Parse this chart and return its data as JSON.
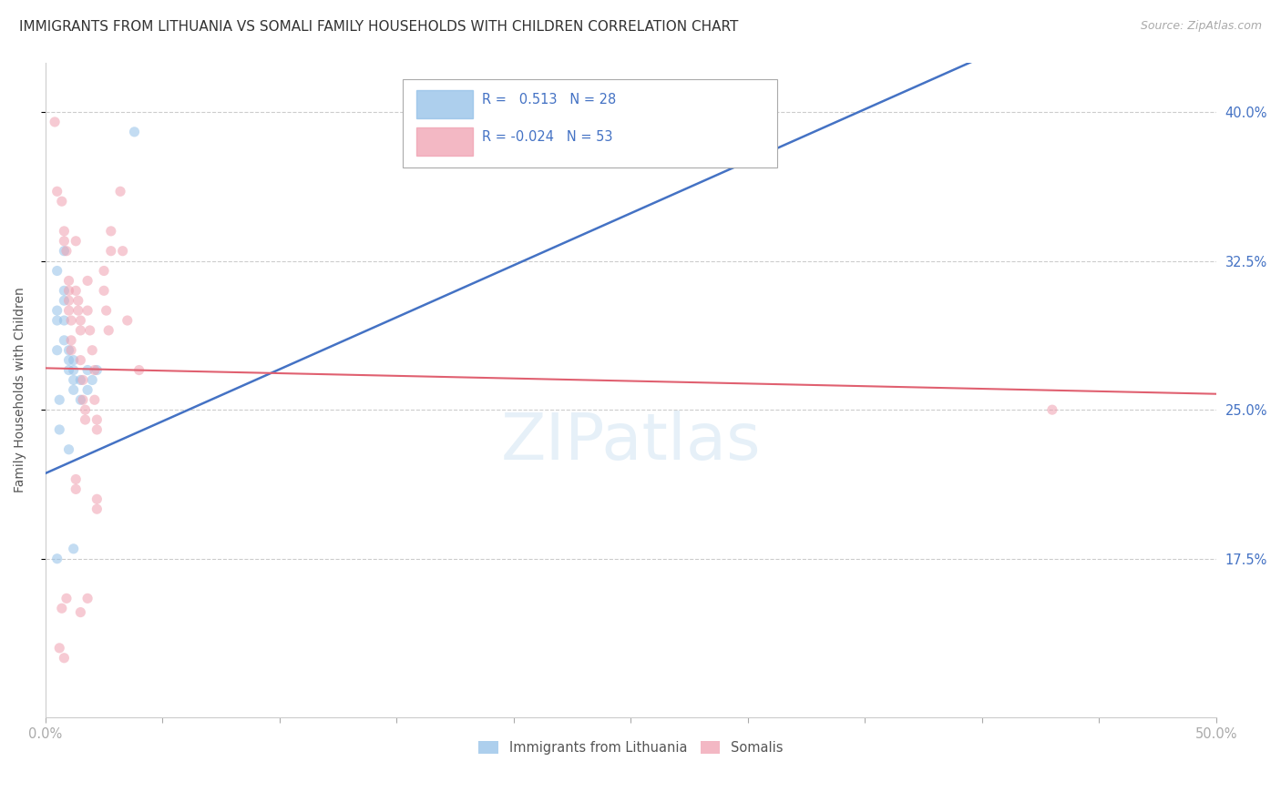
{
  "title": "IMMIGRANTS FROM LITHUANIA VS SOMALI FAMILY HOUSEHOLDS WITH CHILDREN CORRELATION CHART",
  "source": "Source: ZipAtlas.com",
  "ylabel": "Family Households with Children",
  "yticks": [
    "40.0%",
    "32.5%",
    "25.0%",
    "17.5%"
  ],
  "ytick_vals": [
    0.4,
    0.325,
    0.25,
    0.175
  ],
  "xmin": 0.0,
  "xmax": 0.5,
  "ymin": 0.095,
  "ymax": 0.425,
  "legend1_color": "#92c0e8",
  "legend2_color": "#f0a0b0",
  "blue_line_color": "#4472c4",
  "pink_line_color": "#e06070",
  "grid_color": "#cccccc",
  "dot_size": 65,
  "dot_alpha": 0.55,
  "title_fontsize": 11,
  "source_fontsize": 9,
  "axis_label_fontsize": 10,
  "tick_fontsize": 10.5,
  "blue_points": [
    [
      0.005,
      0.32
    ],
    [
      0.005,
      0.3
    ],
    [
      0.005,
      0.295
    ],
    [
      0.005,
      0.28
    ],
    [
      0.008,
      0.33
    ],
    [
      0.008,
      0.31
    ],
    [
      0.008,
      0.305
    ],
    [
      0.008,
      0.295
    ],
    [
      0.008,
      0.285
    ],
    [
      0.01,
      0.28
    ],
    [
      0.01,
      0.275
    ],
    [
      0.01,
      0.27
    ],
    [
      0.012,
      0.275
    ],
    [
      0.012,
      0.27
    ],
    [
      0.012,
      0.265
    ],
    [
      0.012,
      0.26
    ],
    [
      0.015,
      0.265
    ],
    [
      0.015,
      0.255
    ],
    [
      0.018,
      0.27
    ],
    [
      0.018,
      0.26
    ],
    [
      0.02,
      0.265
    ],
    [
      0.022,
      0.27
    ],
    [
      0.006,
      0.24
    ],
    [
      0.01,
      0.23
    ],
    [
      0.005,
      0.175
    ],
    [
      0.012,
      0.18
    ],
    [
      0.038,
      0.39
    ],
    [
      0.006,
      0.255
    ]
  ],
  "pink_points": [
    [
      0.004,
      0.395
    ],
    [
      0.005,
      0.36
    ],
    [
      0.007,
      0.355
    ],
    [
      0.008,
      0.34
    ],
    [
      0.008,
      0.335
    ],
    [
      0.009,
      0.33
    ],
    [
      0.01,
      0.315
    ],
    [
      0.01,
      0.31
    ],
    [
      0.01,
      0.305
    ],
    [
      0.01,
      0.3
    ],
    [
      0.011,
      0.295
    ],
    [
      0.011,
      0.285
    ],
    [
      0.011,
      0.28
    ],
    [
      0.013,
      0.335
    ],
    [
      0.013,
      0.31
    ],
    [
      0.014,
      0.305
    ],
    [
      0.014,
      0.3
    ],
    [
      0.015,
      0.295
    ],
    [
      0.015,
      0.29
    ],
    [
      0.015,
      0.275
    ],
    [
      0.016,
      0.265
    ],
    [
      0.016,
      0.255
    ],
    [
      0.017,
      0.25
    ],
    [
      0.017,
      0.245
    ],
    [
      0.018,
      0.315
    ],
    [
      0.018,
      0.3
    ],
    [
      0.019,
      0.29
    ],
    [
      0.02,
      0.28
    ],
    [
      0.021,
      0.27
    ],
    [
      0.021,
      0.255
    ],
    [
      0.022,
      0.245
    ],
    [
      0.022,
      0.24
    ],
    [
      0.025,
      0.32
    ],
    [
      0.025,
      0.31
    ],
    [
      0.026,
      0.3
    ],
    [
      0.027,
      0.29
    ],
    [
      0.028,
      0.34
    ],
    [
      0.028,
      0.33
    ],
    [
      0.032,
      0.36
    ],
    [
      0.033,
      0.33
    ],
    [
      0.035,
      0.295
    ],
    [
      0.04,
      0.27
    ],
    [
      0.006,
      0.13
    ],
    [
      0.008,
      0.125
    ],
    [
      0.013,
      0.21
    ],
    [
      0.013,
      0.215
    ],
    [
      0.022,
      0.205
    ],
    [
      0.009,
      0.155
    ],
    [
      0.018,
      0.155
    ],
    [
      0.43,
      0.25
    ],
    [
      0.007,
      0.15
    ],
    [
      0.015,
      0.148
    ],
    [
      0.022,
      0.2
    ]
  ],
  "blue_line_x": [
    0.0,
    0.5
  ],
  "blue_line_y": [
    0.218,
    0.48
  ],
  "pink_line_x": [
    0.0,
    0.5
  ],
  "pink_line_y": [
    0.271,
    0.258
  ],
  "legend_r1": "R =   0.513   N = 28",
  "legend_r2": "R = -0.024   N = 53",
  "legend_bottom": [
    {
      "label": "Immigrants from Lithuania",
      "color": "#92c0e8"
    },
    {
      "label": "Somalis",
      "color": "#f0a0b0"
    }
  ],
  "watermark_text": "ZIPatlas",
  "watermark_color": "#c8dff0",
  "watermark_alpha": 0.45
}
